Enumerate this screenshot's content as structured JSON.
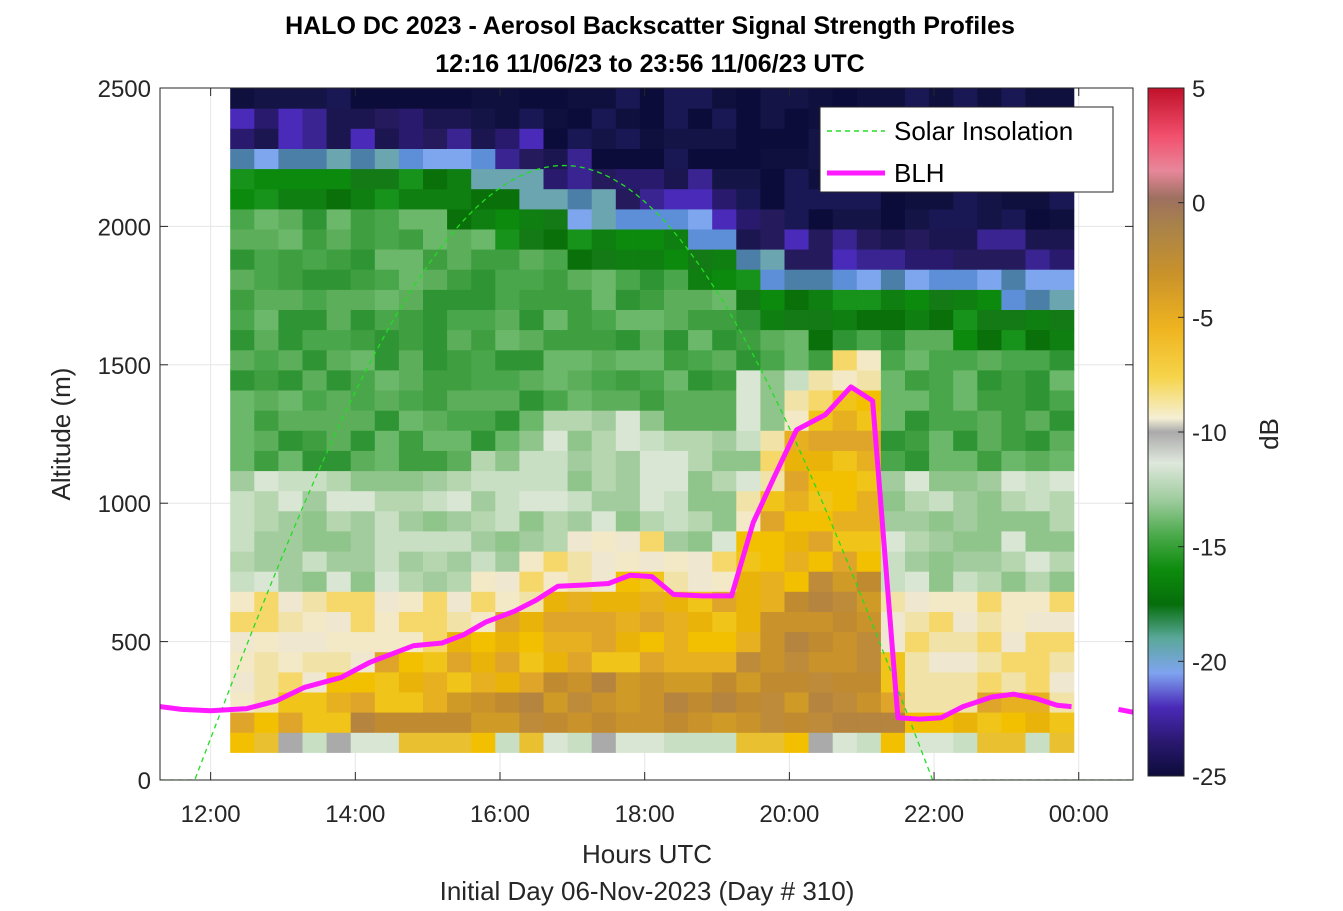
{
  "chart_data": {
    "type": "heatmap",
    "title_line1": "HALO DC 2023 - Aerosol Backscatter Signal Strength Profiles",
    "title_line2": "12:16 11/06/23 to 23:56 11/06/23  UTC",
    "xlabel": "Hours UTC",
    "subcaption": "Initial Day 06-Nov-2023 (Day # 310)",
    "ylabel": "Altitude (m)",
    "colorbar_label": "dB",
    "xlim_hours": [
      11.3,
      24.75
    ],
    "ylim": [
      0,
      2500
    ],
    "x_ticks": [
      {
        "value": 12,
        "label": "12:00"
      },
      {
        "value": 14,
        "label": "14:00"
      },
      {
        "value": 16,
        "label": "16:00"
      },
      {
        "value": 18,
        "label": "18:00"
      },
      {
        "value": 20,
        "label": "20:00"
      },
      {
        "value": 22,
        "label": "22:00"
      },
      {
        "value": 24,
        "label": "00:00"
      }
    ],
    "y_ticks": [
      0,
      500,
      1000,
      1500,
      2000,
      2500
    ],
    "colorbar_ticks": [
      5,
      0,
      -5,
      -10,
      -15,
      -20,
      -25
    ],
    "colorbar_range": [
      -25,
      5
    ],
    "grid": true,
    "legend_position": "top-right",
    "legend": [
      {
        "name": "Solar Insolation",
        "style": "dashed",
        "color": "#22dd22"
      },
      {
        "name": "BLH",
        "style": "solid",
        "color": "#ff1aff"
      }
    ],
    "heatmap_extent": {
      "x_start": 12.27,
      "x_end": 23.93,
      "y_start": 100,
      "y_end": 2500
    },
    "blh": {
      "x": [
        11.3,
        11.6,
        12.0,
        12.5,
        12.9,
        13.3,
        13.8,
        14.2,
        14.8,
        15.2,
        15.5,
        15.8,
        16.2,
        16.5,
        16.8,
        17.2,
        17.5,
        17.8,
        18.1,
        18.4,
        18.8,
        19.2,
        19.5,
        19.8,
        20.1,
        20.5,
        20.85,
        21.15,
        21.5,
        21.8,
        22.1,
        22.4,
        22.8,
        23.1,
        23.4,
        23.7,
        23.9,
        24.15,
        24.55,
        24.75
      ],
      "y": [
        265,
        255,
        250,
        258,
        285,
        335,
        370,
        425,
        485,
        495,
        525,
        570,
        610,
        650,
        700,
        705,
        710,
        740,
        735,
        670,
        665,
        665,
        930,
        1100,
        1265,
        1320,
        1420,
        1370,
        225,
        220,
        225,
        265,
        300,
        310,
        295,
        270,
        265,
        null,
        255,
        245
      ]
    },
    "solar": {
      "peak_hour": 16.9,
      "peak_alt": 2220,
      "zero_start": 11.78,
      "zero_end": 21.98
    }
  },
  "colors": {
    "blh": "#ff1aff",
    "solar": "#22dd22",
    "grid": "#e6e6e6",
    "axis": "#262626"
  }
}
